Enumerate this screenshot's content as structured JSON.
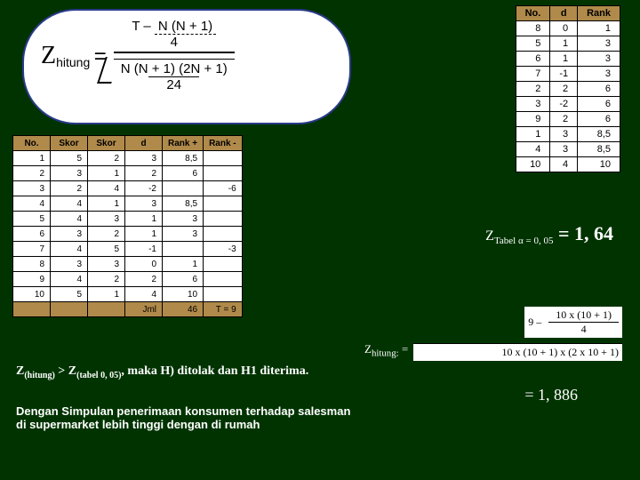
{
  "formula": {
    "lhs": "Z",
    "lhs_sub": "hitung",
    "eq": "=",
    "top_prefix": "T – ",
    "top_num": "N (N + 1)",
    "top_den": "4",
    "bot_num": "N (N + 1) (2N + 1)",
    "bot_den": "24"
  },
  "right_table": {
    "headers": [
      "No.",
      "d",
      "Rank"
    ],
    "rows": [
      [
        "8",
        "0",
        "1"
      ],
      [
        "5",
        "1",
        "3"
      ],
      [
        "6",
        "1",
        "3"
      ],
      [
        "7",
        "-1",
        "3"
      ],
      [
        "2",
        "2",
        "6"
      ],
      [
        "3",
        "-2",
        "6"
      ],
      [
        "9",
        "2",
        "6"
      ],
      [
        "1",
        "3",
        "8,5"
      ],
      [
        "4",
        "3",
        "8,5"
      ],
      [
        "10",
        "4",
        "10"
      ]
    ],
    "header_bg": "#b08a4a"
  },
  "left_table": {
    "headers": [
      "No.",
      "Skor",
      "Skor",
      "d",
      "Rank +",
      "Rank -"
    ],
    "rows": [
      [
        "1",
        "5",
        "2",
        "3",
        "8,5",
        ""
      ],
      [
        "2",
        "3",
        "1",
        "2",
        "6",
        ""
      ],
      [
        "3",
        "2",
        "4",
        "-2",
        "",
        "-6"
      ],
      [
        "4",
        "4",
        "1",
        "3",
        "8,5",
        ""
      ],
      [
        "5",
        "4",
        "3",
        "1",
        "3",
        ""
      ],
      [
        "6",
        "3",
        "2",
        "1",
        "3",
        ""
      ],
      [
        "7",
        "4",
        "5",
        "-1",
        "",
        "-3"
      ],
      [
        "8",
        "3",
        "3",
        "0",
        "1",
        ""
      ],
      [
        "9",
        "4",
        "2",
        "2",
        "6",
        ""
      ],
      [
        "10",
        "5",
        "1",
        "4",
        "10",
        ""
      ]
    ],
    "footer": [
      "",
      "",
      "",
      "Jml",
      "46",
      "T = 9"
    ]
  },
  "ztabel": {
    "label": "Z",
    "sub": "Tabel α = 0, 05",
    "eq": " = 1, 64"
  },
  "calc": {
    "nine": "9 – ",
    "f1_top": "10 x (10 + 1)",
    "f1_bot": "4",
    "f2": "10 x (10 + 1) x (2 x 10 + 1)",
    "zh": "Z",
    "zh_sub": "hitung:",
    "eq": " = ",
    "result": "= 1, 886"
  },
  "text1": {
    "a": "Z",
    "asub": "(hitung)",
    "b": " > Z",
    "bsub": "(tabel 0, 05)",
    "c": ", maka H) ditolak dan H1 diterima."
  },
  "text2": "Dengan Simpulan penerimaan konsumen terhadap salesman di supermarket lebih tinggi dengan di rumah"
}
